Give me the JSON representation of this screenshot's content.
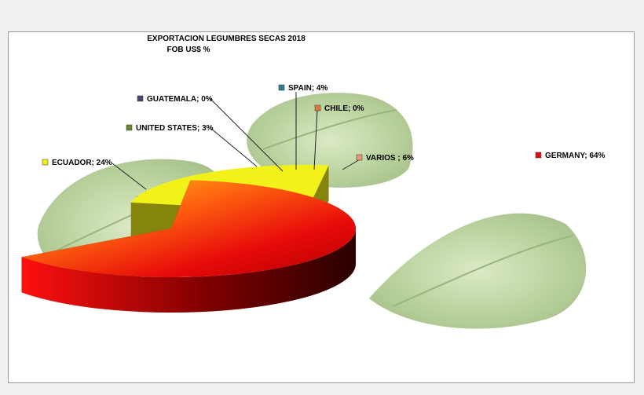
{
  "chart_data": {
    "type": "pie",
    "title": "EXPORTACION  LEGUMBRES SECAS 2018",
    "subtitle": "FOB  US$ %",
    "slices": [
      {
        "label": "GERMANY",
        "value": 64,
        "display": "GERMANY; 64%",
        "color": "#e01010"
      },
      {
        "label": "VARIOS ",
        "value": 6,
        "display": "VARIOS ; 6%",
        "color": "#e89a78"
      },
      {
        "label": "CHILE",
        "value": 0,
        "display": "CHILE; 0%",
        "color": "#e07a3a"
      },
      {
        "label": "SPAIN",
        "value": 4,
        "display": "SPAIN; 4%",
        "color": "#2f7f8f"
      },
      {
        "label": "GUATEMALA",
        "value": 0,
        "display": "GUATEMALA; 0%",
        "color": "#4a4470"
      },
      {
        "label": "UNITED STATES",
        "value": 3,
        "display": "UNITED STATES; 3%",
        "color": "#6b8a33"
      },
      {
        "label": "ECUADOR",
        "value": 24,
        "display": "ECUADOR; 24%",
        "color": "#f2f21a"
      }
    ],
    "legend": "labels-with-leader-lines",
    "style": "3d-exploded"
  }
}
